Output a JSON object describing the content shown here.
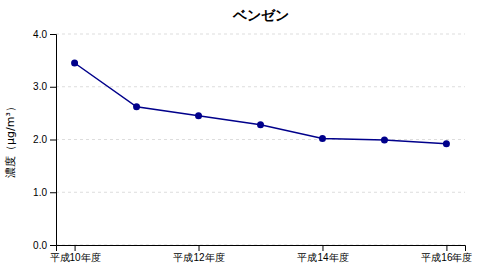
{
  "chart_data": {
    "type": "line",
    "title": "ベンゼン",
    "ylabel": "濃度（μg/m³）",
    "x": [
      0,
      1,
      2,
      3,
      4,
      5,
      6
    ],
    "values": [
      3.45,
      2.62,
      2.45,
      2.28,
      2.02,
      1.99,
      1.92
    ],
    "color": "#00008B",
    "marker": "circle",
    "xlim": [
      -0.3,
      6.3
    ],
    "xticks": [
      {
        "value": 0,
        "label": "平成10年度"
      },
      {
        "value": 2,
        "label": "平成12年度"
      },
      {
        "value": 4,
        "label": "平成14年度"
      },
      {
        "value": 6,
        "label": "平成16年度"
      }
    ],
    "ylim": [
      0.0,
      4.0
    ],
    "yticks": [
      {
        "value": 0.0,
        "label": "0.0"
      },
      {
        "value": 1.0,
        "label": "1.0"
      },
      {
        "value": 2.0,
        "label": "2.0"
      },
      {
        "value": 3.0,
        "label": "3.0"
      },
      {
        "value": 4.0,
        "label": "4.0"
      }
    ],
    "grid": "y"
  }
}
